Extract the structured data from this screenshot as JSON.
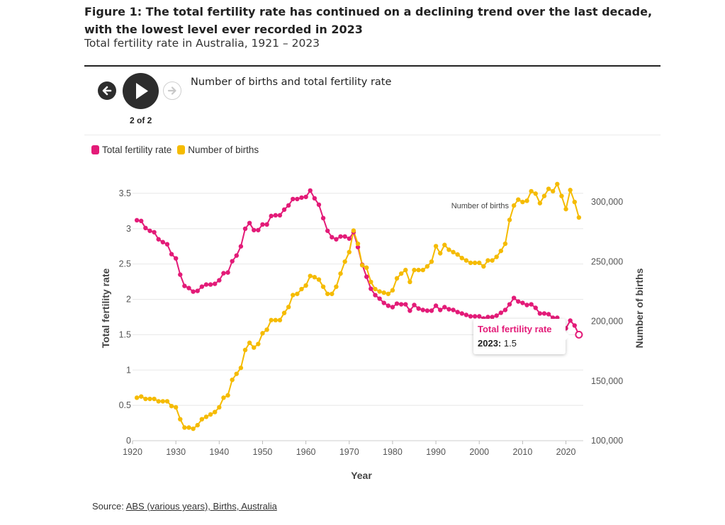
{
  "figure": {
    "title": "Figure 1: The total fertility rate has continued on a declining trend over the last decade, with the lowest level ever recorded in 2023",
    "subtitle": "Total fertility rate in Australia, 1921 – 2023"
  },
  "controls": {
    "prev_icon": "arrow-left-icon",
    "play_icon": "play-icon",
    "next_icon": "arrow-right-icon",
    "step_label": "2 of 2",
    "panel_title": "Number of births and total fertility rate"
  },
  "legend": {
    "tfr_label": "Total fertility rate",
    "births_label": "Number of births"
  },
  "colors": {
    "tfr": "#e31b78",
    "births": "#f5bb00",
    "grid": "#e8e8e8"
  },
  "tooltip": {
    "series": "Total fertility rate",
    "year_label": "2023:",
    "value": "1.5"
  },
  "source": {
    "prefix": "Source: ",
    "link_text": "ABS (various years), Births, Australia"
  },
  "chart_data": {
    "type": "line",
    "xlabel": "Year",
    "ylabel_left": "Total fertility rate",
    "ylabel_right": "Number of births",
    "xlim": [
      1920,
      2024
    ],
    "ylim_left": [
      0,
      3.75
    ],
    "ylim_right": [
      100000,
      322000
    ],
    "x_ticks": [
      "1920",
      "1930",
      "1940",
      "1950",
      "1960",
      "1970",
      "1980",
      "1990",
      "2000",
      "2010",
      "2020"
    ],
    "y_left_ticks": [
      "0",
      "0.5",
      "1",
      "1.5",
      "2",
      "2.5",
      "3",
      "3.5"
    ],
    "y_right_ticks": [
      "100,000",
      "150,000",
      "200,000",
      "250,000",
      "300,000"
    ],
    "series_label_annotation": "Number of births",
    "x": [
      1921,
      1922,
      1923,
      1924,
      1925,
      1926,
      1927,
      1928,
      1929,
      1930,
      1931,
      1932,
      1933,
      1934,
      1935,
      1936,
      1937,
      1938,
      1939,
      1940,
      1941,
      1942,
      1943,
      1944,
      1945,
      1946,
      1947,
      1948,
      1949,
      1950,
      1951,
      1952,
      1953,
      1954,
      1955,
      1956,
      1957,
      1958,
      1959,
      1960,
      1961,
      1962,
      1963,
      1964,
      1965,
      1966,
      1967,
      1968,
      1969,
      1970,
      1971,
      1972,
      1973,
      1974,
      1975,
      1976,
      1977,
      1978,
      1979,
      1980,
      1981,
      1982,
      1983,
      1984,
      1985,
      1986,
      1987,
      1988,
      1989,
      1990,
      1991,
      1992,
      1993,
      1994,
      1995,
      1996,
      1997,
      1998,
      1999,
      2000,
      2001,
      2002,
      2003,
      2004,
      2005,
      2006,
      2007,
      2008,
      2009,
      2010,
      2011,
      2012,
      2013,
      2014,
      2015,
      2016,
      2017,
      2018,
      2019,
      2020,
      2021,
      2022,
      2023
    ],
    "series": [
      {
        "name": "Total fertility rate",
        "values": [
          3.12,
          3.11,
          3.01,
          2.97,
          2.95,
          2.85,
          2.81,
          2.78,
          2.64,
          2.58,
          2.35,
          2.19,
          2.16,
          2.11,
          2.12,
          2.18,
          2.21,
          2.21,
          2.22,
          2.27,
          2.37,
          2.38,
          2.54,
          2.62,
          2.75,
          3.0,
          3.08,
          2.98,
          2.98,
          3.06,
          3.06,
          3.18,
          3.19,
          3.19,
          3.27,
          3.33,
          3.42,
          3.42,
          3.44,
          3.45,
          3.54,
          3.43,
          3.34,
          3.15,
          2.97,
          2.88,
          2.85,
          2.89,
          2.89,
          2.86,
          2.95,
          2.74,
          2.49,
          2.32,
          2.15,
          2.06,
          2.01,
          1.95,
          1.91,
          1.89,
          1.94,
          1.93,
          1.93,
          1.84,
          1.92,
          1.87,
          1.85,
          1.84,
          1.84,
          1.91,
          1.85,
          1.89,
          1.86,
          1.85,
          1.82,
          1.8,
          1.78,
          1.76,
          1.76,
          1.76,
          1.73,
          1.75,
          1.75,
          1.77,
          1.81,
          1.85,
          1.93,
          2.02,
          1.97,
          1.95,
          1.92,
          1.93,
          1.88,
          1.8,
          1.8,
          1.79,
          1.74,
          1.74,
          1.66,
          1.59,
          1.7,
          1.63,
          1.5
        ]
      },
      {
        "name": "Number of births",
        "values": [
          136000,
          137000,
          135000,
          135000,
          135000,
          133000,
          133000,
          133000,
          129000,
          128000,
          118000,
          111000,
          111000,
          110000,
          113000,
          118000,
          120000,
          122000,
          124000,
          128000,
          136000,
          138000,
          151000,
          156000,
          161000,
          176000,
          182000,
          178000,
          181000,
          190000,
          193000,
          201000,
          201000,
          201000,
          207000,
          212000,
          222000,
          223000,
          227000,
          230000,
          238000,
          237000,
          235000,
          229000,
          223000,
          223000,
          229000,
          240000,
          250000,
          258000,
          276000,
          265000,
          247000,
          245000,
          233000,
          227000,
          225000,
          224000,
          223000,
          226000,
          236000,
          240000,
          243000,
          233000,
          243000,
          243000,
          243000,
          246000,
          250000,
          263000,
          257000,
          264000,
          260000,
          258000,
          256000,
          253000,
          251000,
          249000,
          249000,
          249000,
          246000,
          251000,
          251000,
          254000,
          259000,
          265000,
          285000,
          297000,
          302000,
          300000,
          301000,
          309000,
          307000,
          299000,
          305000,
          311000,
          309000,
          315000,
          305000,
          294000,
          310000,
          300000,
          287000
        ]
      }
    ]
  }
}
